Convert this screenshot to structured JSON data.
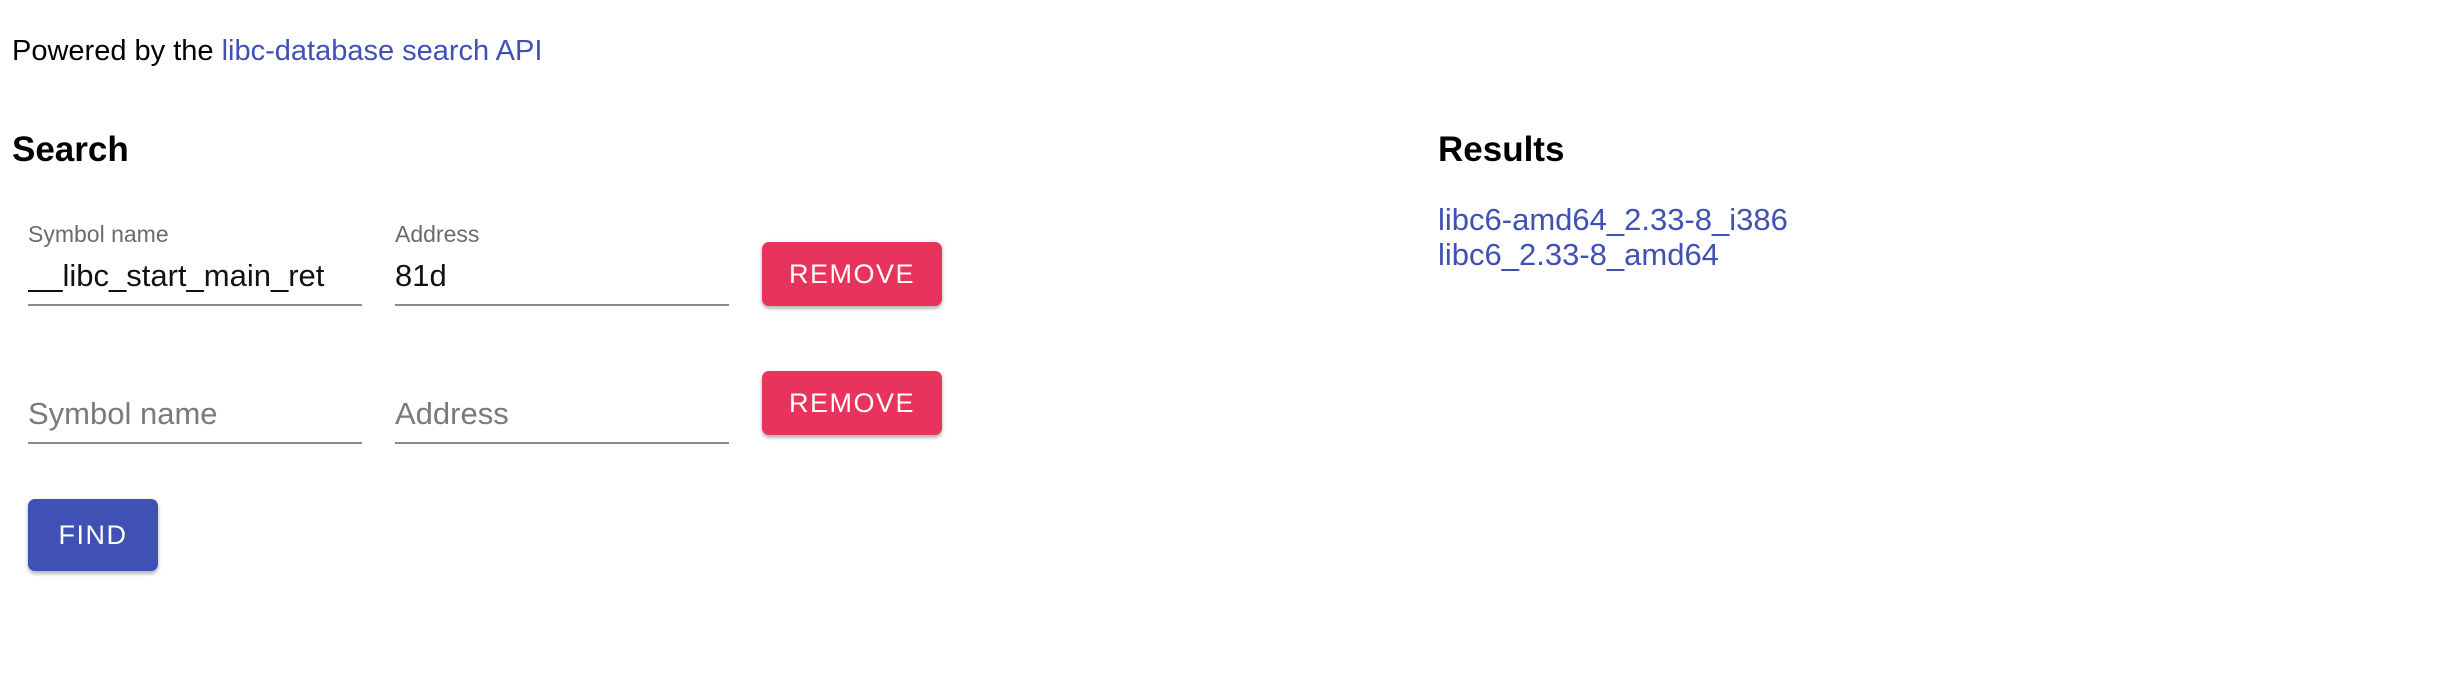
{
  "header": {
    "powered_prefix": "Powered by the ",
    "powered_link": "libc-database search API"
  },
  "search": {
    "title": "Search",
    "rows": [
      {
        "symbol_label": "Symbol name",
        "symbol_value": "__libc_start_main_ret",
        "address_label": "Address",
        "address_value": "81d",
        "remove_label": "Remove"
      },
      {
        "symbol_placeholder": "Symbol name",
        "symbol_value": "",
        "address_placeholder": "Address",
        "address_value": "",
        "remove_label": "Remove"
      }
    ],
    "find_label": "Find"
  },
  "results": {
    "title": "Results",
    "items": [
      "libc6-amd64_2.33-8_i386",
      "libc6_2.33-8_amd64"
    ]
  },
  "colors": {
    "primary": "#3f51b5",
    "remove": "#e8335c"
  }
}
